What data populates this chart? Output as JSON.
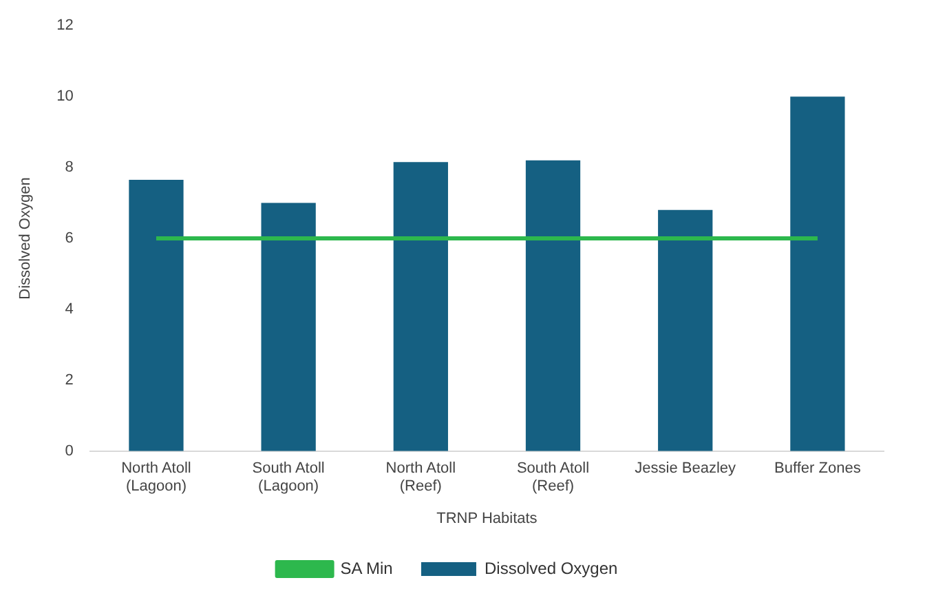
{
  "chart_data": {
    "type": "bar",
    "xlabel": "TRNP Habitats",
    "ylabel": "Dissolved Oxygen",
    "categories": [
      "North Atoll (Lagoon)",
      "South Atoll (Lagoon)",
      "North Atoll (Reef)",
      "South Atoll (Reef)",
      "Jessie Beazley",
      "Buffer Zones"
    ],
    "series": [
      {
        "name": "Dissolved Oxygen",
        "color": "#156082",
        "values": [
          7.65,
          7.0,
          8.15,
          8.2,
          6.8,
          10.0
        ]
      },
      {
        "name": "SA Min",
        "type": "line",
        "color": "#2db84d",
        "values": [
          6,
          6,
          6,
          6,
          6,
          6
        ]
      }
    ],
    "ylim": [
      0,
      12
    ],
    "yticks": [
      0,
      2,
      4,
      6,
      8,
      10,
      12
    ],
    "grid": false,
    "legend": "bottom",
    "marker": "none"
  }
}
